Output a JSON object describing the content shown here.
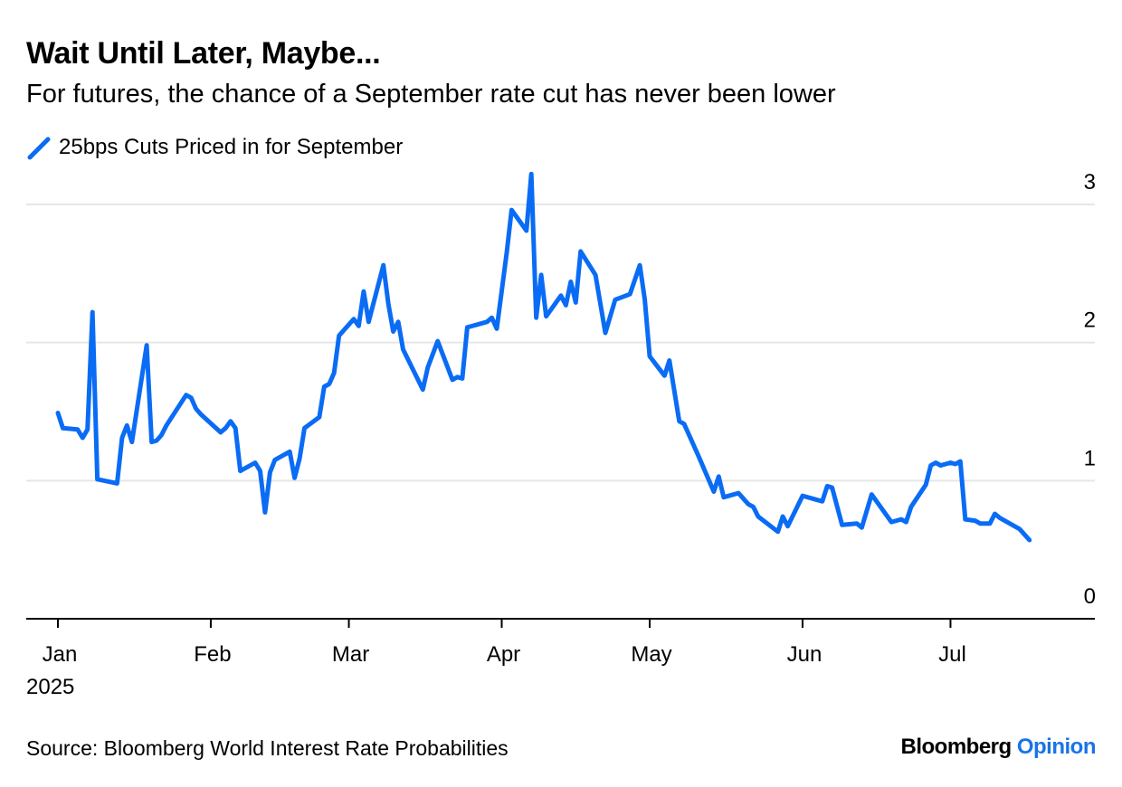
{
  "chart_data": {
    "type": "line",
    "title": "Wait Until Later, Maybe...",
    "subtitle": "For futures, the chance of a September rate cut has never been lower",
    "xlabel": "",
    "ylabel": "",
    "source": "Source: Bloomberg World Interest Rate Probabilities",
    "brand_main": "Bloomberg",
    "brand_accent": "Opinion",
    "color": "#0a6cf5",
    "grid": true,
    "legend_position": "top-left",
    "ylim": [
      0,
      3
    ],
    "yticks": [
      "0",
      "1",
      "2",
      "3"
    ],
    "xticks": [
      {
        "label": "Jan",
        "date": "2025-01-01"
      },
      {
        "label": "Feb",
        "date": "2025-02-01"
      },
      {
        "label": "Mar",
        "date": "2025-03-01"
      },
      {
        "label": "Apr",
        "date": "2025-04-01"
      },
      {
        "label": "May",
        "date": "2025-05-01"
      },
      {
        "label": "Jun",
        "date": "2025-06-01"
      },
      {
        "label": "Jul",
        "date": "2025-07-01"
      }
    ],
    "year_label": "2025",
    "series": [
      {
        "name": "25bps Cuts Priced in for September",
        "points": [
          [
            "2025-01-01",
            1.49
          ],
          [
            "2025-01-02",
            1.38
          ],
          [
            "2025-01-05",
            1.37
          ],
          [
            "2025-01-06",
            1.31
          ],
          [
            "2025-01-07",
            1.37
          ],
          [
            "2025-01-08",
            2.22
          ],
          [
            "2025-01-09",
            1.01
          ],
          [
            "2025-01-13",
            0.98
          ],
          [
            "2025-01-14",
            1.31
          ],
          [
            "2025-01-15",
            1.4
          ],
          [
            "2025-01-16",
            1.28
          ],
          [
            "2025-01-19",
            1.98
          ],
          [
            "2025-01-20",
            1.28
          ],
          [
            "2025-01-21",
            1.29
          ],
          [
            "2025-01-22",
            1.33
          ],
          [
            "2025-01-23",
            1.4
          ],
          [
            "2025-01-27",
            1.62
          ],
          [
            "2025-01-28",
            1.6
          ],
          [
            "2025-01-29",
            1.52
          ],
          [
            "2025-01-30",
            1.48
          ],
          [
            "2025-02-03",
            1.35
          ],
          [
            "2025-02-04",
            1.38
          ],
          [
            "2025-02-05",
            1.43
          ],
          [
            "2025-02-06",
            1.38
          ],
          [
            "2025-02-07",
            1.07
          ],
          [
            "2025-02-10",
            1.13
          ],
          [
            "2025-02-11",
            1.07
          ],
          [
            "2025-02-12",
            0.77
          ],
          [
            "2025-02-13",
            1.06
          ],
          [
            "2025-02-14",
            1.15
          ],
          [
            "2025-02-17",
            1.21
          ],
          [
            "2025-02-18",
            1.02
          ],
          [
            "2025-02-19",
            1.16
          ],
          [
            "2025-02-20",
            1.38
          ],
          [
            "2025-02-23",
            1.46
          ],
          [
            "2025-02-24",
            1.68
          ],
          [
            "2025-02-25",
            1.7
          ],
          [
            "2025-02-26",
            1.78
          ],
          [
            "2025-02-27",
            2.05
          ],
          [
            "2025-03-02",
            2.17
          ],
          [
            "2025-03-03",
            2.12
          ],
          [
            "2025-03-04",
            2.37
          ],
          [
            "2025-03-05",
            2.15
          ],
          [
            "2025-03-08",
            2.56
          ],
          [
            "2025-03-09",
            2.28
          ],
          [
            "2025-03-10",
            2.08
          ],
          [
            "2025-03-11",
            2.15
          ],
          [
            "2025-03-12",
            1.95
          ],
          [
            "2025-03-16",
            1.66
          ],
          [
            "2025-03-17",
            1.82
          ],
          [
            "2025-03-19",
            2.01
          ],
          [
            "2025-03-22",
            1.73
          ],
          [
            "2025-03-23",
            1.75
          ],
          [
            "2025-03-24",
            1.74
          ],
          [
            "2025-03-25",
            2.11
          ],
          [
            "2025-03-29",
            2.15
          ],
          [
            "2025-03-30",
            2.18
          ],
          [
            "2025-03-31",
            2.1
          ],
          [
            "2025-04-02",
            2.65
          ],
          [
            "2025-04-03",
            2.96
          ],
          [
            "2025-04-06",
            2.81
          ],
          [
            "2025-04-07",
            3.22
          ],
          [
            "2025-04-08",
            2.18
          ],
          [
            "2025-04-09",
            2.49
          ],
          [
            "2025-04-10",
            2.19
          ],
          [
            "2025-04-13",
            2.34
          ],
          [
            "2025-04-14",
            2.27
          ],
          [
            "2025-04-15",
            2.44
          ],
          [
            "2025-04-16",
            2.29
          ],
          [
            "2025-04-17",
            2.66
          ],
          [
            "2025-04-20",
            2.49
          ],
          [
            "2025-04-22",
            2.07
          ],
          [
            "2025-04-24",
            2.31
          ],
          [
            "2025-04-27",
            2.35
          ],
          [
            "2025-04-29",
            2.56
          ],
          [
            "2025-04-30",
            2.31
          ],
          [
            "2025-05-01",
            1.9
          ],
          [
            "2025-05-04",
            1.76
          ],
          [
            "2025-05-05",
            1.87
          ],
          [
            "2025-05-07",
            1.43
          ],
          [
            "2025-05-08",
            1.41
          ],
          [
            "2025-05-11",
            1.17
          ],
          [
            "2025-05-14",
            0.92
          ],
          [
            "2025-05-15",
            1.03
          ],
          [
            "2025-05-16",
            0.88
          ],
          [
            "2025-05-19",
            0.91
          ],
          [
            "2025-05-21",
            0.83
          ],
          [
            "2025-05-22",
            0.81
          ],
          [
            "2025-05-23",
            0.74
          ],
          [
            "2025-05-27",
            0.63
          ],
          [
            "2025-05-28",
            0.74
          ],
          [
            "2025-05-29",
            0.67
          ],
          [
            "2025-06-01",
            0.89
          ],
          [
            "2025-06-04",
            0.86
          ],
          [
            "2025-06-05",
            0.85
          ],
          [
            "2025-06-06",
            0.96
          ],
          [
            "2025-06-07",
            0.95
          ],
          [
            "2025-06-09",
            0.68
          ],
          [
            "2025-06-12",
            0.69
          ],
          [
            "2025-06-13",
            0.66
          ],
          [
            "2025-06-15",
            0.9
          ],
          [
            "2025-06-19",
            0.7
          ],
          [
            "2025-06-21",
            0.72
          ],
          [
            "2025-06-22",
            0.7
          ],
          [
            "2025-06-23",
            0.81
          ],
          [
            "2025-06-26",
            0.97
          ],
          [
            "2025-06-27",
            1.11
          ],
          [
            "2025-06-28",
            1.13
          ],
          [
            "2025-06-29",
            1.11
          ],
          [
            "2025-07-01",
            1.13
          ],
          [
            "2025-07-02",
            1.12
          ],
          [
            "2025-07-03",
            1.14
          ],
          [
            "2025-07-04",
            0.72
          ],
          [
            "2025-07-06",
            0.71
          ],
          [
            "2025-07-07",
            0.69
          ],
          [
            "2025-07-09",
            0.69
          ],
          [
            "2025-07-10",
            0.76
          ],
          [
            "2025-07-11",
            0.73
          ],
          [
            "2025-07-15",
            0.65
          ],
          [
            "2025-07-17",
            0.57
          ]
        ]
      }
    ]
  }
}
